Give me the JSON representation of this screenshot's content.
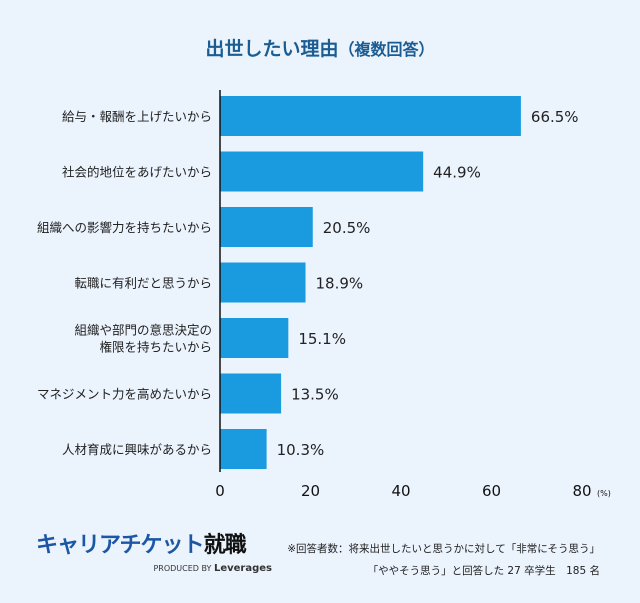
{
  "title": "出世したい理由",
  "subtitle": "（複数回答）",
  "chart_data": {
    "type": "bar",
    "orientation": "horizontal",
    "title": "出世したい理由（複数回答）",
    "categories": [
      "給与・報酬を上げたいから",
      "社会的地位をあげたいから",
      "組織への影響力を持ちたいから",
      "転職に有利だと思うから",
      "組織や部門の意思決定の\n権限を持ちたいから",
      "マネジメント力を高めたいから",
      "人材育成に興味があるから"
    ],
    "values": [
      66.5,
      44.9,
      20.5,
      18.9,
      15.1,
      13.5,
      10.3
    ],
    "value_labels": [
      "66.5%",
      "44.9%",
      "20.5%",
      "18.9%",
      "15.1%",
      "13.5%",
      "10.3%"
    ],
    "xlim": [
      0,
      80
    ],
    "xticks": [
      "0",
      "20",
      "40",
      "60",
      "80"
    ],
    "xunit": "(%)",
    "grid": false,
    "bar_color": "#1a9be0"
  },
  "logo": {
    "name": "キャリアチケット",
    "name_bold": "就職",
    "byline": "PRODUCED BY",
    "brand": "Leverages"
  },
  "note": {
    "line1": "※回答者数：将来出世したいと思うかに対して「非常にそう思う」",
    "line2": "「ややそう思う」と回答した 27 卒学生　185 名"
  }
}
